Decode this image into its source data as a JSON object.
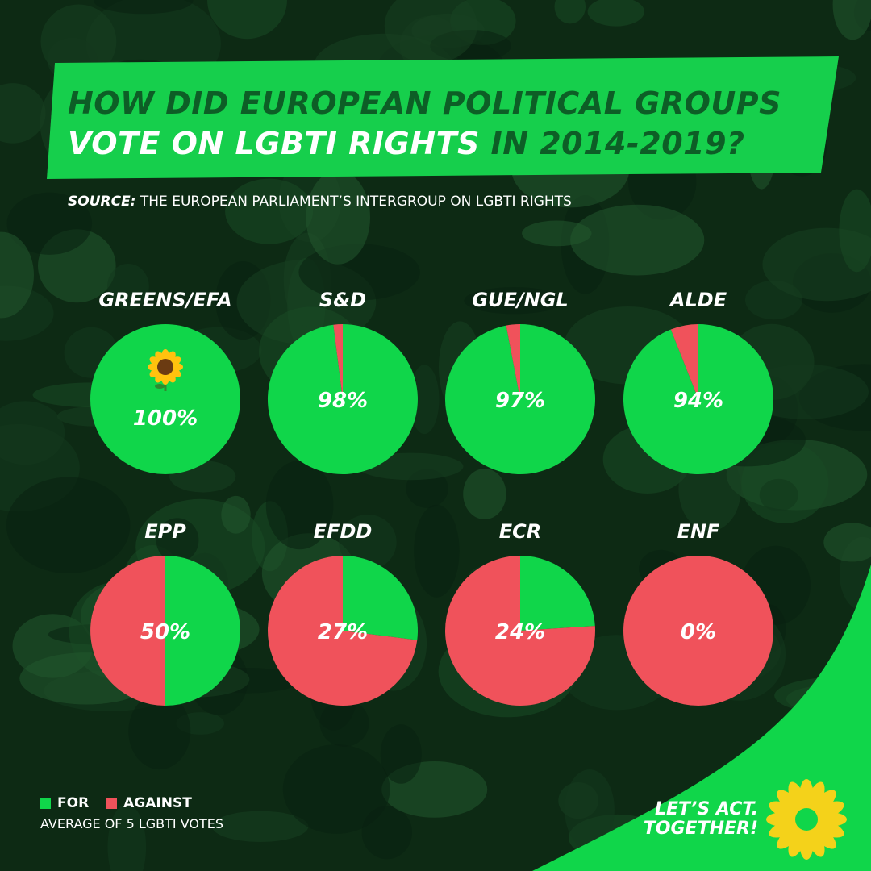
{
  "header": {
    "title_line1": "HOW DID EUROPEAN POLITICAL GROUPS",
    "title_line2_highlight": "VOTE ON LGBTI RIGHTS",
    "title_line2_rest": " IN 2014-2019?",
    "source_label": "SOURCE:",
    "source_text": " THE EUROPEAN PARLIAMENT’S INTERGROUP ON LGBTI RIGHTS"
  },
  "colors": {
    "for": "#10d64a",
    "against": "#f0525b",
    "banner": "#16cf4c",
    "title_dark": "#0d5e26",
    "background": "#0d2a14"
  },
  "chart_data": {
    "type": "pie",
    "series_labels": [
      "FOR",
      "AGAINST"
    ],
    "groups": [
      {
        "name": "GREENS/EFA",
        "for": 100,
        "against": 0,
        "label": "100%",
        "icon": "sunflower-icon"
      },
      {
        "name": "S&D",
        "for": 98,
        "against": 2,
        "label": "98%"
      },
      {
        "name": "GUE/NGL",
        "for": 97,
        "against": 3,
        "label": "97%"
      },
      {
        "name": "ALDE",
        "for": 94,
        "against": 6,
        "label": "94%"
      },
      {
        "name": "EPP",
        "for": 50,
        "against": 50,
        "label": "50%"
      },
      {
        "name": "EFDD",
        "for": 27,
        "against": 73,
        "label": "27%"
      },
      {
        "name": "ECR",
        "for": 24,
        "against": 76,
        "label": "24%"
      },
      {
        "name": "ENF",
        "for": 0,
        "against": 100,
        "label": "0%"
      }
    ]
  },
  "legend": {
    "for_label": "FOR",
    "against_label": "AGAINST",
    "note": "AVERAGE OF 5 LGBTI VOTES"
  },
  "footer": {
    "slogan_line1": "LET’S ACT.",
    "slogan_line2": "TOGETHER!",
    "logo_icon": "sunflower-logo-icon"
  }
}
